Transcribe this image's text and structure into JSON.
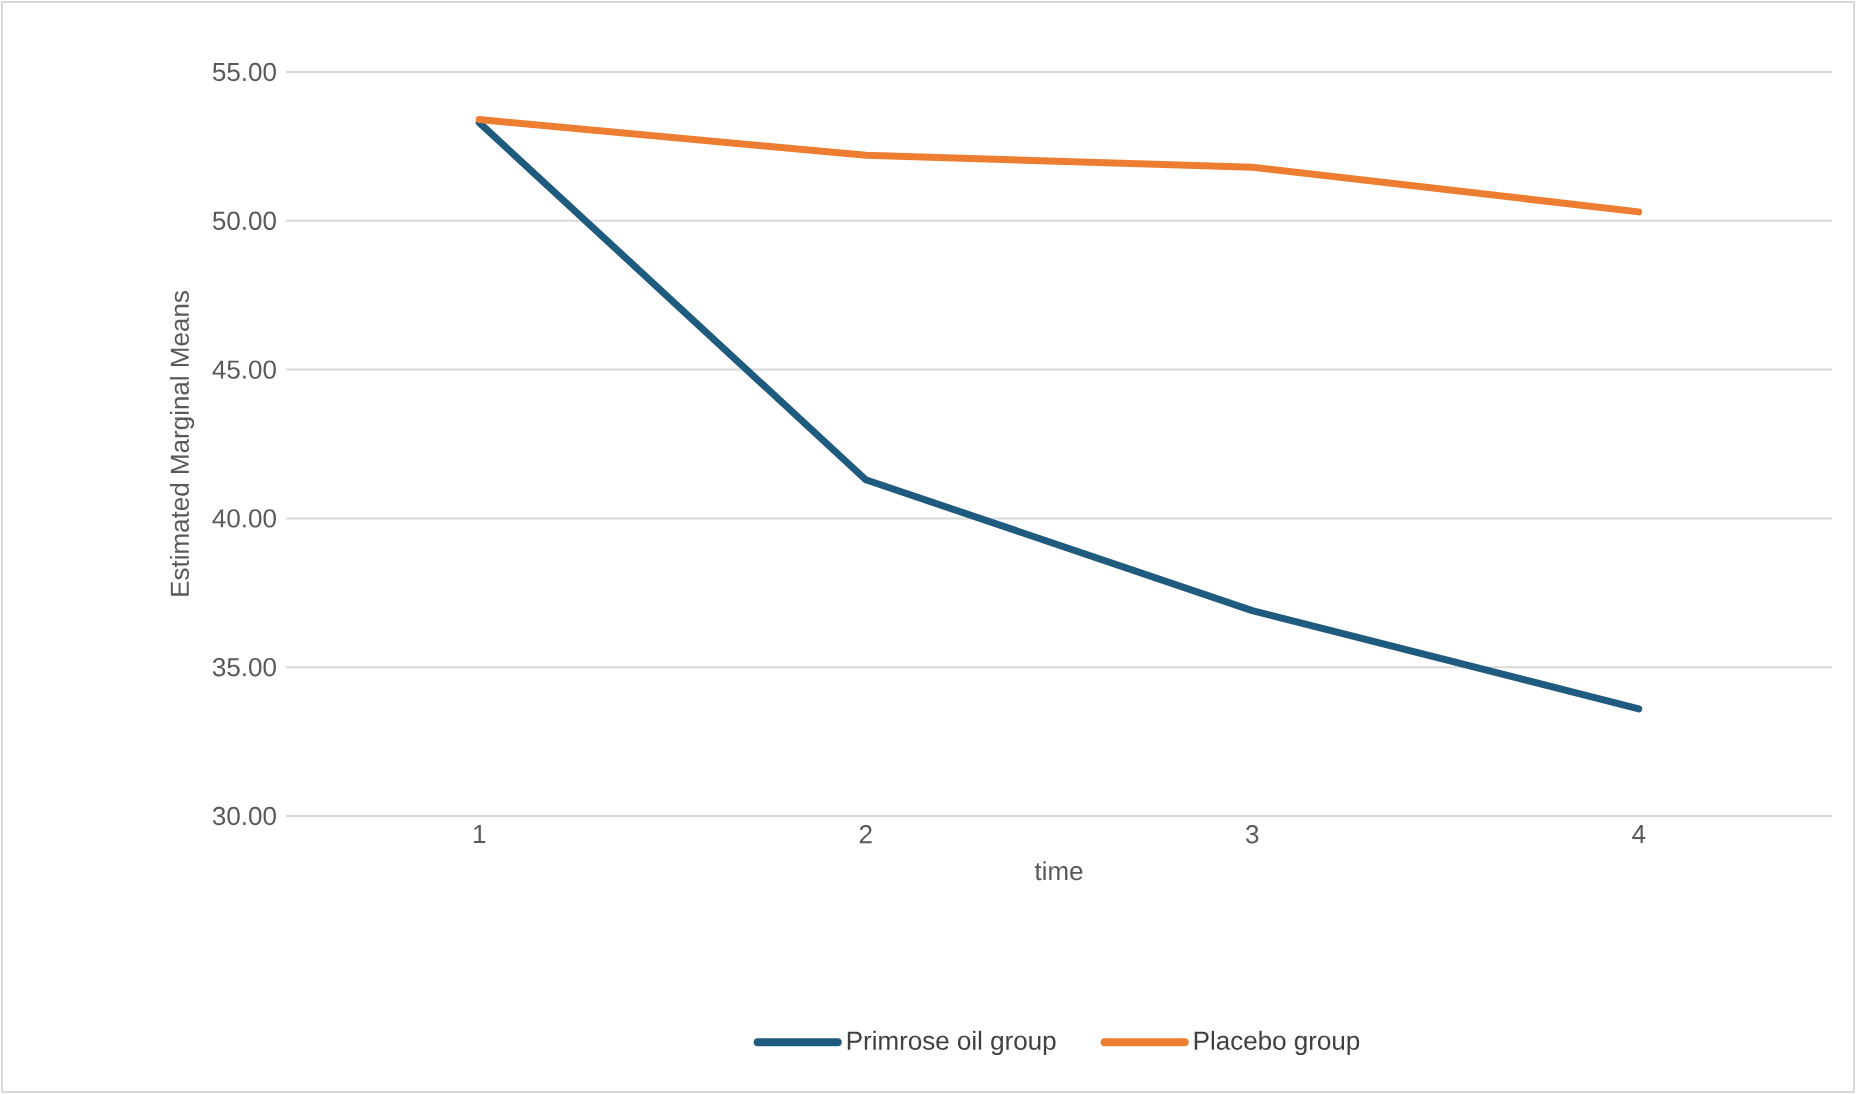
{
  "chart_data": {
    "type": "line",
    "xlabel": "time",
    "ylabel": "Estimated Marginal Means",
    "categories": [
      "1",
      "2",
      "3",
      "4"
    ],
    "series": [
      {
        "name": "Primrose oil group",
        "color": "#1f5b7e",
        "values": [
          53.3,
          41.3,
          36.9,
          33.6
        ]
      },
      {
        "name": "Placebo group",
        "color": "#ed7d31",
        "values": [
          53.4,
          52.2,
          51.8,
          50.3
        ]
      }
    ],
    "ylim": [
      30,
      55
    ],
    "yticks": [
      {
        "value": 30,
        "label": "30.00"
      },
      {
        "value": 35,
        "label": "35.00"
      },
      {
        "value": 40,
        "label": "40.00"
      },
      {
        "value": 45,
        "label": "45.00"
      },
      {
        "value": 50,
        "label": "50.00"
      },
      {
        "value": 55,
        "label": "55.00"
      }
    ],
    "grid": "y",
    "legend": "bottom",
    "marker": "none",
    "line_style": "solid"
  }
}
